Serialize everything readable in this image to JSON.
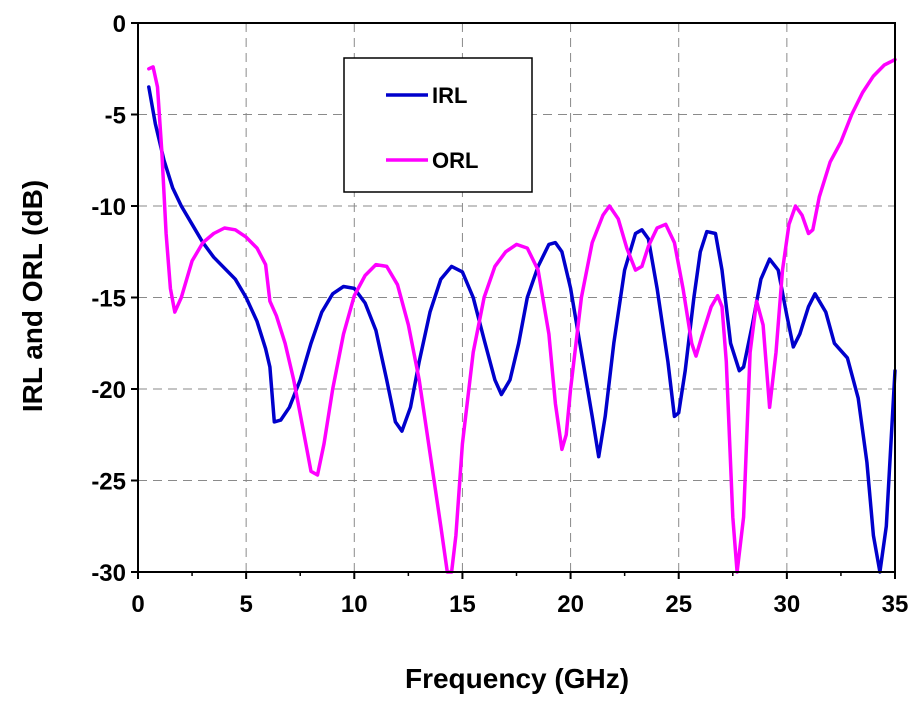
{
  "chart_data": {
    "type": "line",
    "title": "",
    "xlabel": "Frequency (GHz)",
    "ylabel": "IRL and ORL (dB)",
    "xlim": [
      0,
      35
    ],
    "ylim": [
      -30,
      0
    ],
    "xticks": [
      0,
      5,
      10,
      15,
      20,
      25,
      30,
      35
    ],
    "yticks": [
      0,
      -5,
      -10,
      -15,
      -20,
      -25,
      -30
    ],
    "grid": "dashed",
    "legend_position": "top-center",
    "series": [
      {
        "name": "IRL",
        "color": "#0000cc",
        "x": [
          0.5,
          0.8,
          1.2,
          1.6,
          2.0,
          2.5,
          3.0,
          3.5,
          4.0,
          4.5,
          5.0,
          5.5,
          5.9,
          6.1,
          6.3,
          6.6,
          7.0,
          7.5,
          8.0,
          8.5,
          9.0,
          9.5,
          10.0,
          10.5,
          11.0,
          11.5,
          11.9,
          12.2,
          12.6,
          13.0,
          13.5,
          14.0,
          14.5,
          15.0,
          15.5,
          16.0,
          16.5,
          16.8,
          17.2,
          17.6,
          18.0,
          18.5,
          19.0,
          19.3,
          19.6,
          20.0,
          20.5,
          21.0,
          21.3,
          21.6,
          22.0,
          22.5,
          23.0,
          23.3,
          23.6,
          24.0,
          24.5,
          24.8,
          25.0,
          25.3,
          25.7,
          26.0,
          26.3,
          26.7,
          27.0,
          27.4,
          27.8,
          28.0,
          28.4,
          28.8,
          29.2,
          29.6,
          30.0,
          30.3,
          30.6,
          31.0,
          31.3,
          31.8,
          32.2,
          32.8,
          33.3,
          33.7,
          34.0,
          34.3,
          34.6,
          35.0
        ],
        "y": [
          -3.5,
          -5.5,
          -7.5,
          -9.0,
          -10.0,
          -11.0,
          -12.0,
          -12.8,
          -13.4,
          -14.0,
          -15.0,
          -16.3,
          -17.8,
          -18.8,
          -21.8,
          -21.7,
          -21.0,
          -19.5,
          -17.5,
          -15.8,
          -14.8,
          -14.4,
          -14.5,
          -15.3,
          -16.8,
          -19.5,
          -21.8,
          -22.3,
          -21.0,
          -18.5,
          -15.8,
          -14.0,
          -13.3,
          -13.6,
          -15.0,
          -17.3,
          -19.5,
          -20.3,
          -19.5,
          -17.5,
          -15.0,
          -13.3,
          -12.1,
          -12.0,
          -12.5,
          -14.5,
          -18.0,
          -21.5,
          -23.7,
          -21.5,
          -17.5,
          -13.5,
          -11.5,
          -11.3,
          -11.8,
          -14.5,
          -18.5,
          -21.5,
          -21.3,
          -19.0,
          -15.0,
          -12.5,
          -11.4,
          -11.5,
          -13.5,
          -17.5,
          -19.0,
          -18.8,
          -16.5,
          -14.0,
          -12.9,
          -13.5,
          -16.0,
          -17.7,
          -17.0,
          -15.5,
          -14.8,
          -15.8,
          -17.5,
          -18.3,
          -20.5,
          -24.0,
          -28.0,
          -30.0,
          -27.5,
          -19.0
        ]
      },
      {
        "name": "ORL",
        "color": "#ff00ff",
        "x": [
          0.5,
          0.7,
          0.9,
          1.1,
          1.3,
          1.5,
          1.7,
          2.0,
          2.5,
          3.0,
          3.5,
          4.0,
          4.5,
          5.0,
          5.5,
          5.9,
          6.1,
          6.4,
          6.8,
          7.2,
          7.6,
          8.0,
          8.3,
          8.6,
          9.0,
          9.5,
          10.0,
          10.5,
          11.0,
          11.5,
          12.0,
          12.5,
          13.0,
          13.5,
          14.0,
          14.3,
          14.5,
          14.7,
          15.0,
          15.5,
          16.0,
          16.5,
          17.0,
          17.5,
          18.0,
          18.5,
          19.0,
          19.3,
          19.6,
          19.8,
          20.0,
          20.5,
          21.0,
          21.5,
          21.8,
          22.2,
          22.6,
          23.0,
          23.3,
          23.6,
          24.0,
          24.4,
          24.8,
          25.2,
          25.6,
          25.8,
          26.1,
          26.5,
          26.8,
          27.0,
          27.2,
          27.5,
          27.7,
          28.0,
          28.3,
          28.6,
          28.9,
          29.2,
          29.5,
          29.8,
          30.1,
          30.4,
          30.7,
          31.0,
          31.2,
          31.5,
          32.0,
          32.5,
          33.0,
          33.5,
          34.0,
          34.5,
          35.0
        ],
        "y": [
          -2.5,
          -2.4,
          -3.5,
          -7.0,
          -11.5,
          -14.5,
          -15.8,
          -15.0,
          -13.0,
          -12.0,
          -11.5,
          -11.2,
          -11.3,
          -11.7,
          -12.3,
          -13.2,
          -15.2,
          -16.0,
          -17.5,
          -19.5,
          -22.0,
          -24.5,
          -24.7,
          -23.0,
          -20.0,
          -17.0,
          -14.9,
          -13.8,
          -13.2,
          -13.3,
          -14.3,
          -16.5,
          -19.5,
          -23.5,
          -27.5,
          -30.0,
          -30.0,
          -28.0,
          -23.0,
          -18.0,
          -15.0,
          -13.3,
          -12.5,
          -12.1,
          -12.3,
          -13.5,
          -17.0,
          -20.8,
          -23.3,
          -22.5,
          -20.0,
          -15.0,
          -12.0,
          -10.5,
          -10.0,
          -10.7,
          -12.3,
          -13.5,
          -13.3,
          -12.2,
          -11.2,
          -11.0,
          -12.0,
          -14.5,
          -17.5,
          -18.2,
          -17.0,
          -15.5,
          -14.9,
          -15.5,
          -18.5,
          -27.0,
          -30.0,
          -27.0,
          -18.0,
          -15.2,
          -16.5,
          -21.0,
          -18.0,
          -13.5,
          -11.0,
          -10.0,
          -10.5,
          -11.5,
          -11.3,
          -9.5,
          -7.6,
          -6.5,
          -5.0,
          -3.8,
          -2.9,
          -2.3,
          -2.0
        ]
      }
    ]
  }
}
